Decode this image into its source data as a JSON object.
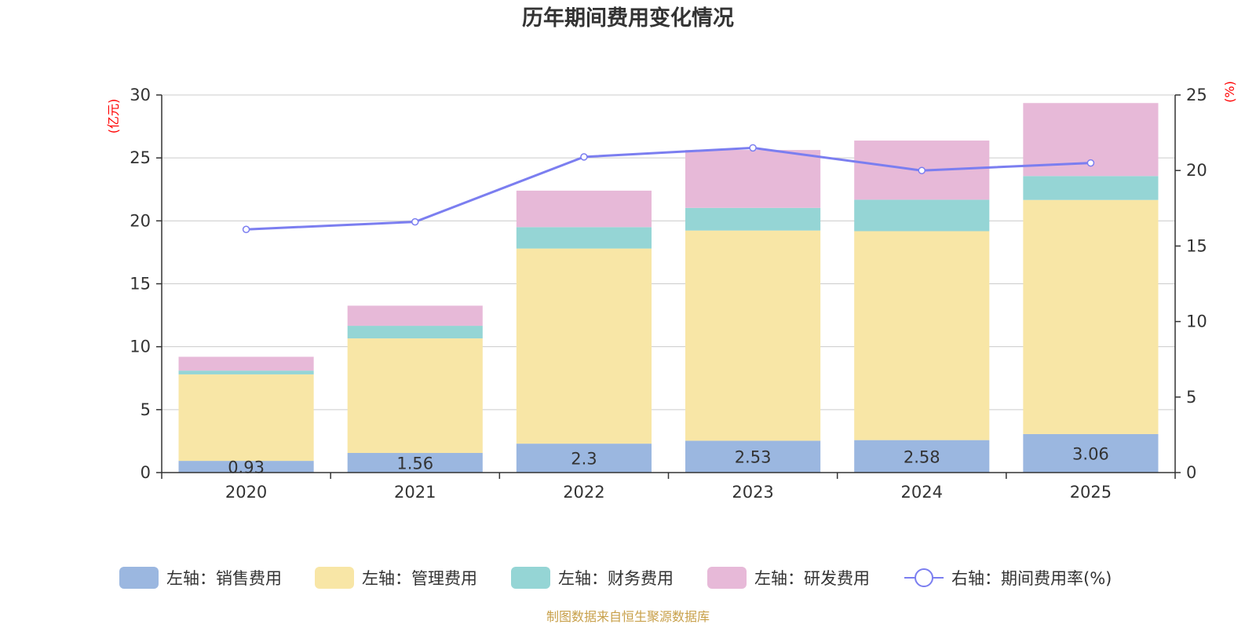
{
  "chart_data": {
    "type": "bar",
    "stacked": true,
    "title": "历年期间费用变化情况",
    "categories": [
      "2020",
      "2021",
      "2022",
      "2023",
      "2024",
      "2025"
    ],
    "left_axis": {
      "unit": "(亿元)",
      "min": 0,
      "max": 30,
      "ticks": [
        0,
        5,
        10,
        15,
        20,
        25,
        30
      ]
    },
    "right_axis": {
      "unit": "(%)",
      "min": 0,
      "max": 25,
      "ticks": [
        0,
        5,
        10,
        15,
        20,
        25
      ]
    },
    "series": [
      {
        "name": "左轴：销售费用",
        "color": "#9bb7e0",
        "values": [
          0.93,
          1.56,
          2.3,
          2.53,
          2.58,
          3.06
        ],
        "show_labels": true
      },
      {
        "name": "左轴：管理费用",
        "color": "#f8e6a6",
        "values": [
          6.87,
          9.1,
          15.5,
          16.7,
          16.6,
          18.6
        ],
        "show_labels": false
      },
      {
        "name": "左轴：财务费用",
        "color": "#95d5d5",
        "values": [
          0.3,
          1.0,
          1.7,
          1.8,
          2.5,
          1.9
        ],
        "show_labels": false
      },
      {
        "name": "左轴：研发费用",
        "color": "#e7b9d8",
        "values": [
          1.1,
          1.6,
          2.9,
          4.6,
          4.7,
          5.8
        ],
        "show_labels": false
      }
    ],
    "line_series": {
      "name": "右轴：期间费用率(%)",
      "color": "#7b7ef0",
      "axis": "right",
      "values": [
        16.1,
        16.6,
        20.9,
        21.5,
        20.0,
        20.5
      ]
    },
    "grid": true,
    "legend_position": "bottom"
  },
  "source_note": "制图数据来自恒生聚源数据库"
}
